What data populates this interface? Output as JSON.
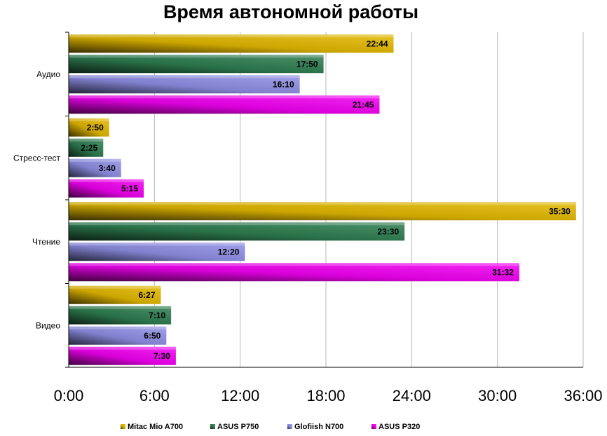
{
  "chart_data": {
    "type": "bar",
    "orientation": "horizontal",
    "title": "Время автономной работы",
    "categories": [
      "Аудио",
      "Стресс-тест",
      "Чтение",
      "Видео"
    ],
    "series": [
      {
        "name": "Mitac Mio A700",
        "color": "#e3b800",
        "values": [
          22.733,
          2.833,
          35.5,
          6.45
        ],
        "labels": [
          "22:44",
          "2:50",
          "35:30",
          "6:27"
        ]
      },
      {
        "name": "ASUS P750",
        "color": "#2e7d50",
        "values": [
          17.833,
          2.417,
          23.5,
          7.167
        ],
        "labels": [
          "17:50",
          "2:25",
          "23:30",
          "7:10"
        ]
      },
      {
        "name": "Glofiish  N700",
        "color": "#8f8fe6",
        "values": [
          16.167,
          3.667,
          12.333,
          6.833
        ],
        "labels": [
          "16:10",
          "3:40",
          "12:20",
          "6:50"
        ]
      },
      {
        "name": "ASUS P320",
        "color": "#f200f2",
        "values": [
          21.75,
          5.25,
          31.533,
          7.5
        ],
        "labels": [
          "21:45",
          "5:15",
          "31:32",
          "7:30"
        ]
      }
    ],
    "xlim": [
      0,
      36
    ],
    "x_ticks": [
      0,
      6,
      12,
      18,
      24,
      30,
      36
    ],
    "x_tick_labels": [
      "0:00",
      "6:00",
      "12:00",
      "18:00",
      "24:00",
      "30:00",
      "36:00"
    ],
    "grid": "vertical",
    "legend_position": "bottom"
  }
}
